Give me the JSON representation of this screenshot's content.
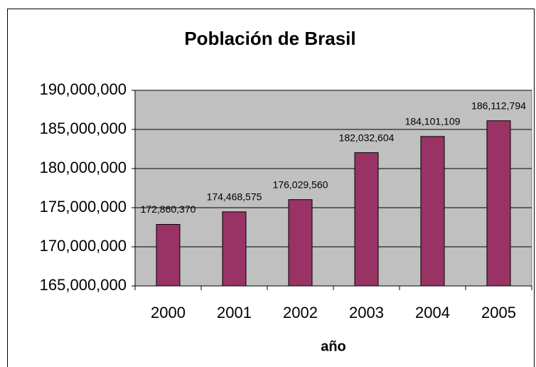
{
  "chart_data": {
    "type": "bar",
    "title": "Población de Brasil",
    "x_label": "año",
    "categories": [
      "2000",
      "2001",
      "2002",
      "2003",
      "2004",
      "2005"
    ],
    "values": [
      172860370,
      174468575,
      176029560,
      182032604,
      184101109,
      186112794
    ],
    "value_labels": [
      "172,860,370",
      "174,468,575",
      "176,029,560",
      "182,032,604",
      "184,101,109",
      "186,112,794"
    ],
    "color": "#993366",
    "ylim": [
      165000000,
      190000000
    ],
    "yticks": [
      {
        "value": 165000000,
        "label": "165,000,000"
      },
      {
        "value": 170000000,
        "label": "170,000,000"
      },
      {
        "value": 175000000,
        "label": "175,000,000"
      },
      {
        "value": 180000000,
        "label": "180,000,000"
      },
      {
        "value": 185000000,
        "label": "185,000,000"
      },
      {
        "value": 190000000,
        "label": "190,000,000"
      }
    ],
    "grid": true
  }
}
